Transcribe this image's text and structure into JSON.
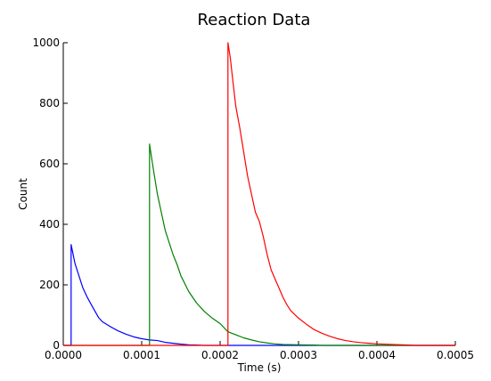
{
  "chart_data": {
    "type": "line",
    "title": "Reaction Data",
    "xlabel": "Time (s)",
    "ylabel": "Count",
    "xlim": [
      0,
      0.0005
    ],
    "ylim": [
      0,
      1000
    ],
    "x_ticks": [
      {
        "value": 0,
        "label": "0.0000"
      },
      {
        "value": 0.0001,
        "label": "0.0001"
      },
      {
        "value": 0.0002,
        "label": "0.0002"
      },
      {
        "value": 0.0003,
        "label": "0.0003"
      },
      {
        "value": 0.0004,
        "label": "0.0004"
      },
      {
        "value": 0.0005,
        "label": "0.0005"
      }
    ],
    "y_ticks": [
      {
        "value": 0,
        "label": "0"
      },
      {
        "value": 200,
        "label": "200"
      },
      {
        "value": 400,
        "label": "400"
      },
      {
        "value": 600,
        "label": "600"
      },
      {
        "value": 800,
        "label": "800"
      },
      {
        "value": 1000,
        "label": "1000"
      }
    ],
    "grid": false,
    "series": [
      {
        "color": "#0000ff",
        "points": [
          [
            0,
            0
          ],
          [
            1e-05,
            0
          ],
          [
            1e-05,
            333
          ],
          [
            1.5e-05,
            270
          ],
          [
            2e-05,
            230
          ],
          [
            2.5e-05,
            190
          ],
          [
            3e-05,
            162
          ],
          [
            3.5e-05,
            138
          ],
          [
            4e-05,
            115
          ],
          [
            4.5e-05,
            92
          ],
          [
            5e-05,
            78
          ],
          [
            6e-05,
            62
          ],
          [
            7e-05,
            48
          ],
          [
            8e-05,
            37
          ],
          [
            9e-05,
            28
          ],
          [
            0.0001,
            22
          ],
          [
            0.00011,
            18
          ],
          [
            0.00012,
            16
          ],
          [
            0.00013,
            10
          ],
          [
            0.00014,
            7
          ],
          [
            0.00015,
            4
          ],
          [
            0.00016,
            2
          ],
          [
            0.00017,
            1
          ],
          [
            0.00018,
            0
          ],
          [
            0.0005,
            0
          ]
        ]
      },
      {
        "color": "#008000",
        "points": [
          [
            0,
            0
          ],
          [
            0.00011,
            0
          ],
          [
            0.00011,
            665
          ],
          [
            0.000115,
            580
          ],
          [
            0.00012,
            500
          ],
          [
            0.000125,
            440
          ],
          [
            0.00013,
            380
          ],
          [
            0.000135,
            340
          ],
          [
            0.00014,
            300
          ],
          [
            0.000145,
            268
          ],
          [
            0.00015,
            230
          ],
          [
            0.00016,
            178
          ],
          [
            0.00017,
            140
          ],
          [
            0.00018,
            112
          ],
          [
            0.00019,
            90
          ],
          [
            0.0002,
            72
          ],
          [
            0.00021,
            45
          ],
          [
            0.00022,
            35
          ],
          [
            0.00023,
            25
          ],
          [
            0.00024,
            18
          ],
          [
            0.00025,
            12
          ],
          [
            0.00026,
            8
          ],
          [
            0.00027,
            5
          ],
          [
            0.00028,
            3
          ],
          [
            0.0003,
            2
          ],
          [
            0.00032,
            1
          ],
          [
            0.00033,
            0
          ],
          [
            0.0005,
            0
          ]
        ]
      },
      {
        "color": "#ff0000",
        "points": [
          [
            0,
            0
          ],
          [
            0.00021,
            0
          ],
          [
            0.00021,
            1000
          ],
          [
            0.000213,
            950
          ],
          [
            0.000216,
            880
          ],
          [
            0.00022,
            790
          ],
          [
            0.000225,
            720
          ],
          [
            0.00023,
            640
          ],
          [
            0.000235,
            560
          ],
          [
            0.00024,
            500
          ],
          [
            0.000245,
            440
          ],
          [
            0.00025,
            410
          ],
          [
            0.000255,
            360
          ],
          [
            0.00026,
            300
          ],
          [
            0.000265,
            250
          ],
          [
            0.00027,
            220
          ],
          [
            0.000275,
            190
          ],
          [
            0.00028,
            160
          ],
          [
            0.000285,
            135
          ],
          [
            0.00029,
            115
          ],
          [
            0.0003,
            90
          ],
          [
            0.00031,
            70
          ],
          [
            0.00032,
            52
          ],
          [
            0.00033,
            40
          ],
          [
            0.00034,
            30
          ],
          [
            0.00035,
            22
          ],
          [
            0.00036,
            16
          ],
          [
            0.00037,
            12
          ],
          [
            0.00038,
            9
          ],
          [
            0.00039,
            7
          ],
          [
            0.0004,
            5
          ],
          [
            0.00042,
            3
          ],
          [
            0.00044,
            1
          ],
          [
            0.00045,
            0
          ],
          [
            0.0005,
            0
          ]
        ]
      }
    ]
  }
}
